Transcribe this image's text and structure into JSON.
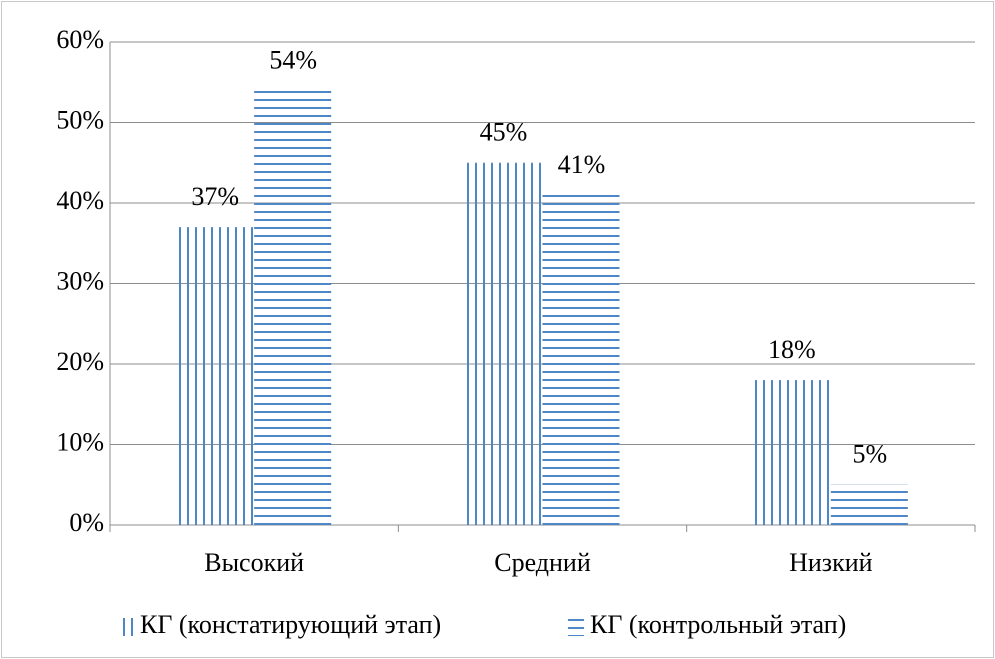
{
  "chart_data": {
    "type": "bar",
    "categories": [
      "Высокий",
      "Средний",
      "Низкий"
    ],
    "series": [
      {
        "name": "КГ (констатирующий этап)",
        "color": "#4f86c6",
        "pattern": "vertical",
        "values": [
          37,
          45,
          18
        ],
        "value_labels": [
          "37%",
          "45%",
          "18%"
        ]
      },
      {
        "name": "КГ (контрольный этап)",
        "color": "#4f86c6",
        "pattern": "horizontal",
        "values": [
          54,
          41,
          5
        ],
        "value_labels": [
          "54%",
          "41%",
          "5%"
        ]
      }
    ],
    "ylim": [
      0,
      60
    ],
    "yticks": [
      {
        "value": 0,
        "label": "0%"
      },
      {
        "value": 10,
        "label": "10%"
      },
      {
        "value": 20,
        "label": "20%"
      },
      {
        "value": 30,
        "label": "30%"
      },
      {
        "value": 40,
        "label": "40%"
      },
      {
        "value": 50,
        "label": "50%"
      },
      {
        "value": 60,
        "label": "60%"
      }
    ],
    "grid": true,
    "legend": "bottom"
  }
}
